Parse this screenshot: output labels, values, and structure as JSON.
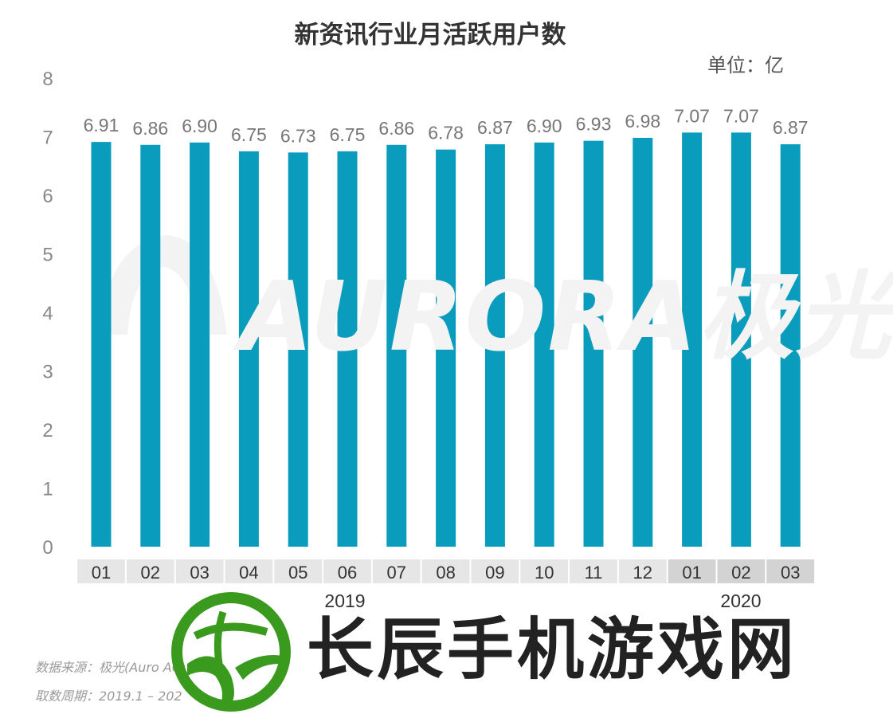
{
  "title": "新资讯行业月活跃用户数",
  "unit_label": "单位：亿",
  "watermark": "AURORA极光",
  "brand_overlay": "长辰手机游戏网",
  "source_line1": "数据来源：极光(Auro          AQ: J",
  "source_line2": "取数周期：2019.1 – 202",
  "colors": {
    "bar": "#0a9cbd",
    "category_bg": "#e6e6e6",
    "category_bg_2020": "#d3d3d3",
    "logo_green": "#3a9a1e"
  },
  "chart_data": {
    "type": "bar",
    "title": "新资讯行业月活跃用户数",
    "unit": "单位：亿",
    "categories": [
      "01",
      "02",
      "03",
      "04",
      "05",
      "06",
      "07",
      "08",
      "09",
      "10",
      "11",
      "12",
      "01",
      "02",
      "03"
    ],
    "groups": [
      {
        "label": "2019",
        "from": 0,
        "to": 11
      },
      {
        "label": "2020",
        "from": 12,
        "to": 14
      }
    ],
    "values": [
      6.91,
      6.86,
      6.9,
      6.75,
      6.73,
      6.75,
      6.86,
      6.78,
      6.87,
      6.9,
      6.93,
      6.98,
      7.07,
      7.07,
      6.87
    ],
    "value_labels": [
      "6.91",
      "6.86",
      "6.90",
      "6.75",
      "6.73",
      "6.75",
      "6.86",
      "6.78",
      "6.87",
      "6.90",
      "6.93",
      "6.98",
      "7.07",
      "7.07",
      "6.87"
    ],
    "ylim": [
      0,
      8
    ],
    "yticks": [
      "0",
      "1",
      "2",
      "3",
      "4",
      "5",
      "6",
      "7",
      "8"
    ],
    "grid": false,
    "legend": "none"
  }
}
